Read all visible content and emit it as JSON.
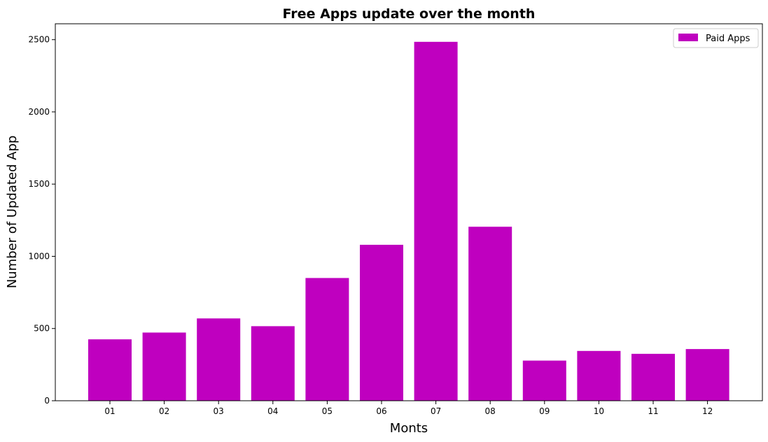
{
  "chart_data": {
    "type": "bar",
    "title": "Free Apps update over the month",
    "xlabel": "Monts",
    "ylabel": "Number of Updated App",
    "categories": [
      "01",
      "02",
      "03",
      "04",
      "05",
      "06",
      "07",
      "08",
      "09",
      "10",
      "11",
      "12"
    ],
    "series": [
      {
        "name": "Paid Apps",
        "color": "#bf00bf",
        "values": [
          425,
          472,
          570,
          516,
          850,
          1080,
          2485,
          1205,
          278,
          345,
          325,
          358
        ]
      }
    ],
    "ylim": [
      0,
      2610
    ],
    "yticks": [
      0,
      500,
      1000,
      1500,
      2000,
      2500
    ],
    "grid": false,
    "legend": "top-right"
  }
}
